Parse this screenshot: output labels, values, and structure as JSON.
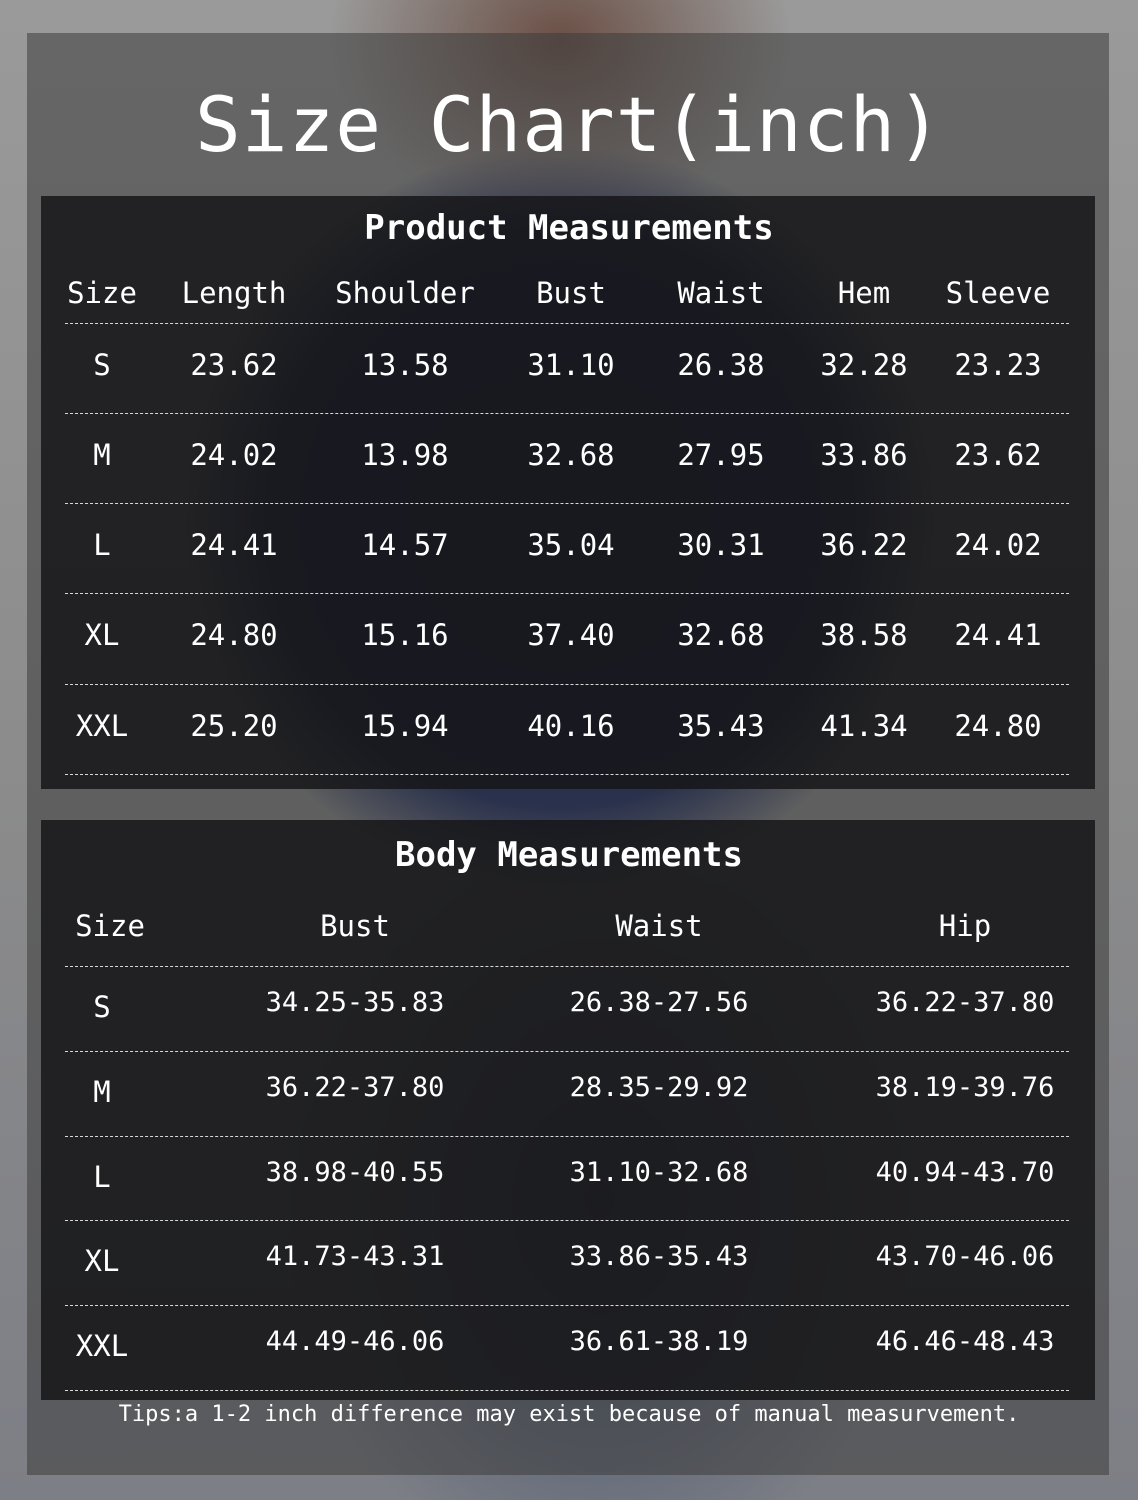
{
  "title": "Size Chart(inch)",
  "product": {
    "title": "Product Measurements",
    "headers": [
      "Size",
      "Length",
      "Shoulder",
      "Bust",
      "Waist",
      "Hem",
      "Sleeve"
    ],
    "rows": [
      [
        "S",
        "23.62",
        "13.58",
        "31.10",
        "26.38",
        "32.28",
        "23.23"
      ],
      [
        "M",
        "24.02",
        "13.98",
        "32.68",
        "27.95",
        "33.86",
        "23.62"
      ],
      [
        "L",
        "24.41",
        "14.57",
        "35.04",
        "30.31",
        "36.22",
        "24.02"
      ],
      [
        "XL",
        "24.80",
        "15.16",
        "37.40",
        "32.68",
        "38.58",
        "24.41"
      ],
      [
        "XXL",
        "25.20",
        "15.94",
        "40.16",
        "35.43",
        "41.34",
        "24.80"
      ]
    ]
  },
  "body": {
    "title": "Body Measurements",
    "headers": [
      "Size",
      "Bust",
      "Waist",
      "Hip"
    ],
    "rows": [
      [
        "S",
        "34.25-35.83",
        "26.38-27.56",
        "36.22-37.80"
      ],
      [
        "M",
        "36.22-37.80",
        "28.35-29.92",
        "38.19-39.76"
      ],
      [
        "L",
        "38.98-40.55",
        "31.10-32.68",
        "40.94-43.70"
      ],
      [
        "XL",
        "41.73-43.31",
        "33.86-35.43",
        "43.70-46.06"
      ],
      [
        "XXL",
        "44.49-46.06",
        "36.61-38.19",
        "46.46-48.43"
      ]
    ]
  },
  "tips": "Tips:a 1-2 inch difference may exist because of manual measurvement."
}
